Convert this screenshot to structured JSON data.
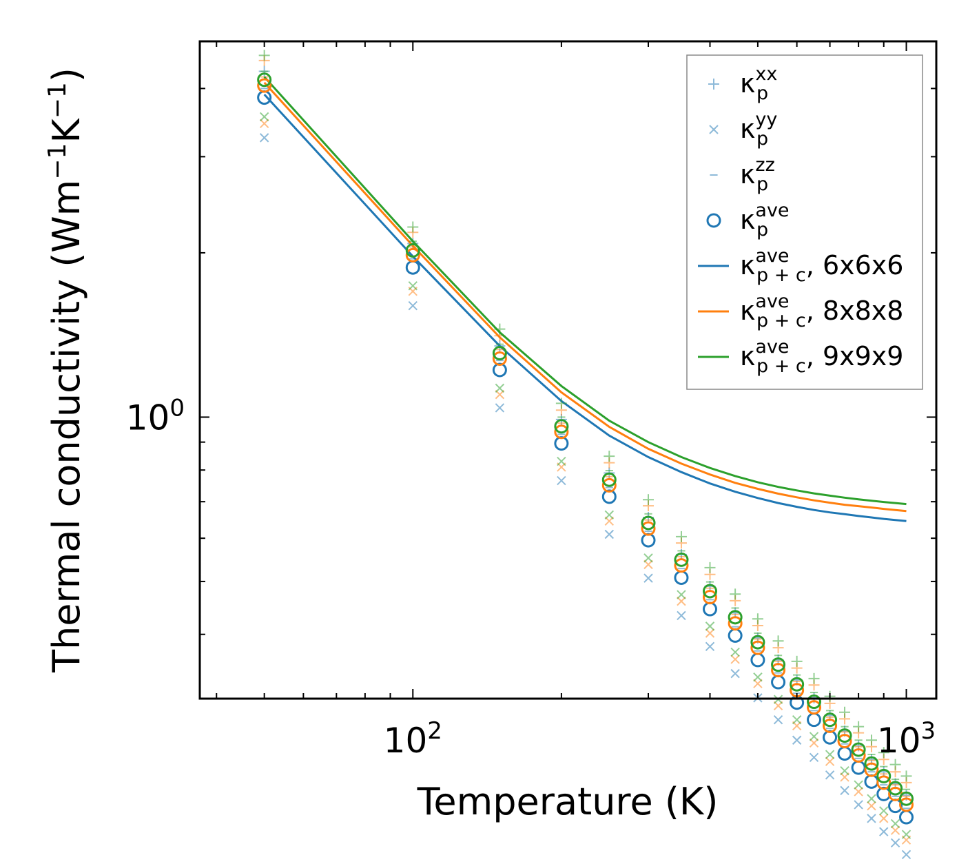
{
  "chart_data": {
    "type": "scatter",
    "title": "",
    "xlabel": "Temperature (K)",
    "ylabel": "Thermal conductivity (Wm",
    "ylabel_sup1": "−1",
    "ylabel_mid": "K",
    "ylabel_sup2": "−1",
    "ylabel_end": ")",
    "xscale": "log",
    "yscale": "log",
    "xlim": [
      37,
      1150
    ],
    "ylim": [
      0.305,
      4.88
    ],
    "x_ticks": [
      {
        "value": 100,
        "base": "10",
        "exp": "2"
      },
      {
        "value": 1000,
        "base": "10",
        "exp": "3"
      }
    ],
    "y_ticks": [
      {
        "value": 1,
        "base": "10",
        "exp": "0"
      }
    ],
    "legend_position": "top-right",
    "x": [
      50,
      100,
      150,
      200,
      250,
      300,
      350,
      400,
      450,
      500,
      550,
      600,
      650,
      700,
      750,
      800,
      850,
      900,
      950,
      1000
    ],
    "series": [
      {
        "name": "6x6x6",
        "color": "#1f77b4",
        "ave": [
          3.85,
          1.88,
          1.22,
          0.895,
          0.715,
          0.595,
          0.508,
          0.445,
          0.398,
          0.359,
          0.327,
          0.3,
          0.279,
          0.259,
          0.242,
          0.228,
          0.215,
          0.204,
          0.194,
          0.185
        ],
        "xx": [
          4.3,
          2.08,
          1.35,
          0.99,
          0.79,
          0.655,
          0.56,
          0.49,
          0.438,
          0.394,
          0.359,
          0.33,
          0.306,
          0.284,
          0.266,
          0.25,
          0.236,
          0.224,
          0.213,
          0.203
        ],
        "yy": [
          3.25,
          1.6,
          1.04,
          0.765,
          0.61,
          0.507,
          0.433,
          0.38,
          0.339,
          0.306,
          0.279,
          0.256,
          0.238,
          0.221,
          0.207,
          0.195,
          0.184,
          0.174,
          0.166,
          0.158
        ],
        "zz": [
          4.0,
          1.95,
          1.27,
          0.93,
          0.743,
          0.618,
          0.528,
          0.463,
          0.413,
          0.373,
          0.34,
          0.312,
          0.29,
          0.269,
          0.252,
          0.237,
          0.224,
          0.212,
          0.202,
          0.192
        ],
        "pc": [
          3.9,
          1.97,
          1.35,
          1.07,
          0.925,
          0.845,
          0.793,
          0.756,
          0.73,
          0.711,
          0.696,
          0.685,
          0.676,
          0.669,
          0.664,
          0.659,
          0.655,
          0.651,
          0.648,
          0.645
        ]
      },
      {
        "name": "8x8x8",
        "color": "#ff7f0e",
        "ave": [
          4.05,
          1.98,
          1.28,
          0.94,
          0.75,
          0.625,
          0.535,
          0.468,
          0.419,
          0.378,
          0.344,
          0.316,
          0.294,
          0.272,
          0.255,
          0.24,
          0.226,
          0.214,
          0.204,
          0.195
        ],
        "xx": [
          4.5,
          2.18,
          1.41,
          1.03,
          0.825,
          0.688,
          0.588,
          0.515,
          0.461,
          0.415,
          0.378,
          0.347,
          0.323,
          0.299,
          0.28,
          0.264,
          0.249,
          0.236,
          0.224,
          0.214
        ],
        "yy": [
          3.45,
          1.7,
          1.1,
          0.81,
          0.645,
          0.537,
          0.46,
          0.402,
          0.36,
          0.325,
          0.296,
          0.272,
          0.253,
          0.234,
          0.219,
          0.206,
          0.194,
          0.184,
          0.175,
          0.168
        ],
        "zz": [
          4.2,
          2.05,
          1.33,
          0.975,
          0.778,
          0.648,
          0.555,
          0.486,
          0.435,
          0.392,
          0.357,
          0.328,
          0.305,
          0.282,
          0.265,
          0.249,
          0.235,
          0.222,
          0.212,
          0.202
        ],
        "pc": [
          4.1,
          2.06,
          1.4,
          1.11,
          0.96,
          0.875,
          0.822,
          0.785,
          0.758,
          0.739,
          0.724,
          0.713,
          0.704,
          0.697,
          0.691,
          0.687,
          0.683,
          0.679,
          0.676,
          0.673
        ]
      },
      {
        "name": "9x9x9",
        "color": "#2ca02c",
        "ave": [
          4.15,
          2.02,
          1.31,
          0.962,
          0.768,
          0.64,
          0.548,
          0.48,
          0.43,
          0.387,
          0.352,
          0.324,
          0.301,
          0.279,
          0.261,
          0.246,
          0.232,
          0.22,
          0.209,
          0.2
        ],
        "xx": [
          4.6,
          2.23,
          1.45,
          1.06,
          0.848,
          0.706,
          0.604,
          0.53,
          0.474,
          0.427,
          0.389,
          0.357,
          0.332,
          0.308,
          0.288,
          0.271,
          0.256,
          0.243,
          0.231,
          0.22
        ],
        "yy": [
          3.55,
          1.74,
          1.13,
          0.83,
          0.662,
          0.552,
          0.473,
          0.414,
          0.371,
          0.334,
          0.304,
          0.279,
          0.26,
          0.241,
          0.225,
          0.212,
          0.2,
          0.19,
          0.18,
          0.172
        ],
        "zz": [
          4.3,
          2.1,
          1.36,
          1.0,
          0.798,
          0.665,
          0.569,
          0.499,
          0.447,
          0.402,
          0.366,
          0.337,
          0.313,
          0.29,
          0.271,
          0.256,
          0.241,
          0.229,
          0.217,
          0.208
        ],
        "pc": [
          4.2,
          2.1,
          1.43,
          1.14,
          0.985,
          0.9,
          0.845,
          0.807,
          0.78,
          0.76,
          0.745,
          0.734,
          0.725,
          0.718,
          0.712,
          0.707,
          0.703,
          0.699,
          0.696,
          0.693
        ]
      }
    ],
    "legend": [
      {
        "kind": "plus",
        "color": "#1f77b4",
        "sym": "κ",
        "sup": "xx",
        "sub": "p",
        "text": ""
      },
      {
        "kind": "cross",
        "color": "#1f77b4",
        "sym": "κ",
        "sup": "yy",
        "sub": "p",
        "text": ""
      },
      {
        "kind": "dash",
        "color": "#1f77b4",
        "sym": "κ",
        "sup": "zz",
        "sub": "p",
        "text": ""
      },
      {
        "kind": "circle",
        "color": "#1f77b4",
        "sym": "κ",
        "sup": "ave",
        "sub": "p",
        "text": ""
      },
      {
        "kind": "line",
        "color": "#1f77b4",
        "sym": "κ",
        "sup": "ave",
        "sub": "p + c",
        "text": ", 6x6x6"
      },
      {
        "kind": "line",
        "color": "#ff7f0e",
        "sym": "κ",
        "sup": "ave",
        "sub": "p + c",
        "text": ", 8x8x8"
      },
      {
        "kind": "line",
        "color": "#2ca02c",
        "sym": "κ",
        "sup": "ave",
        "sub": "p + c",
        "text": ", 9x9x9"
      }
    ]
  }
}
